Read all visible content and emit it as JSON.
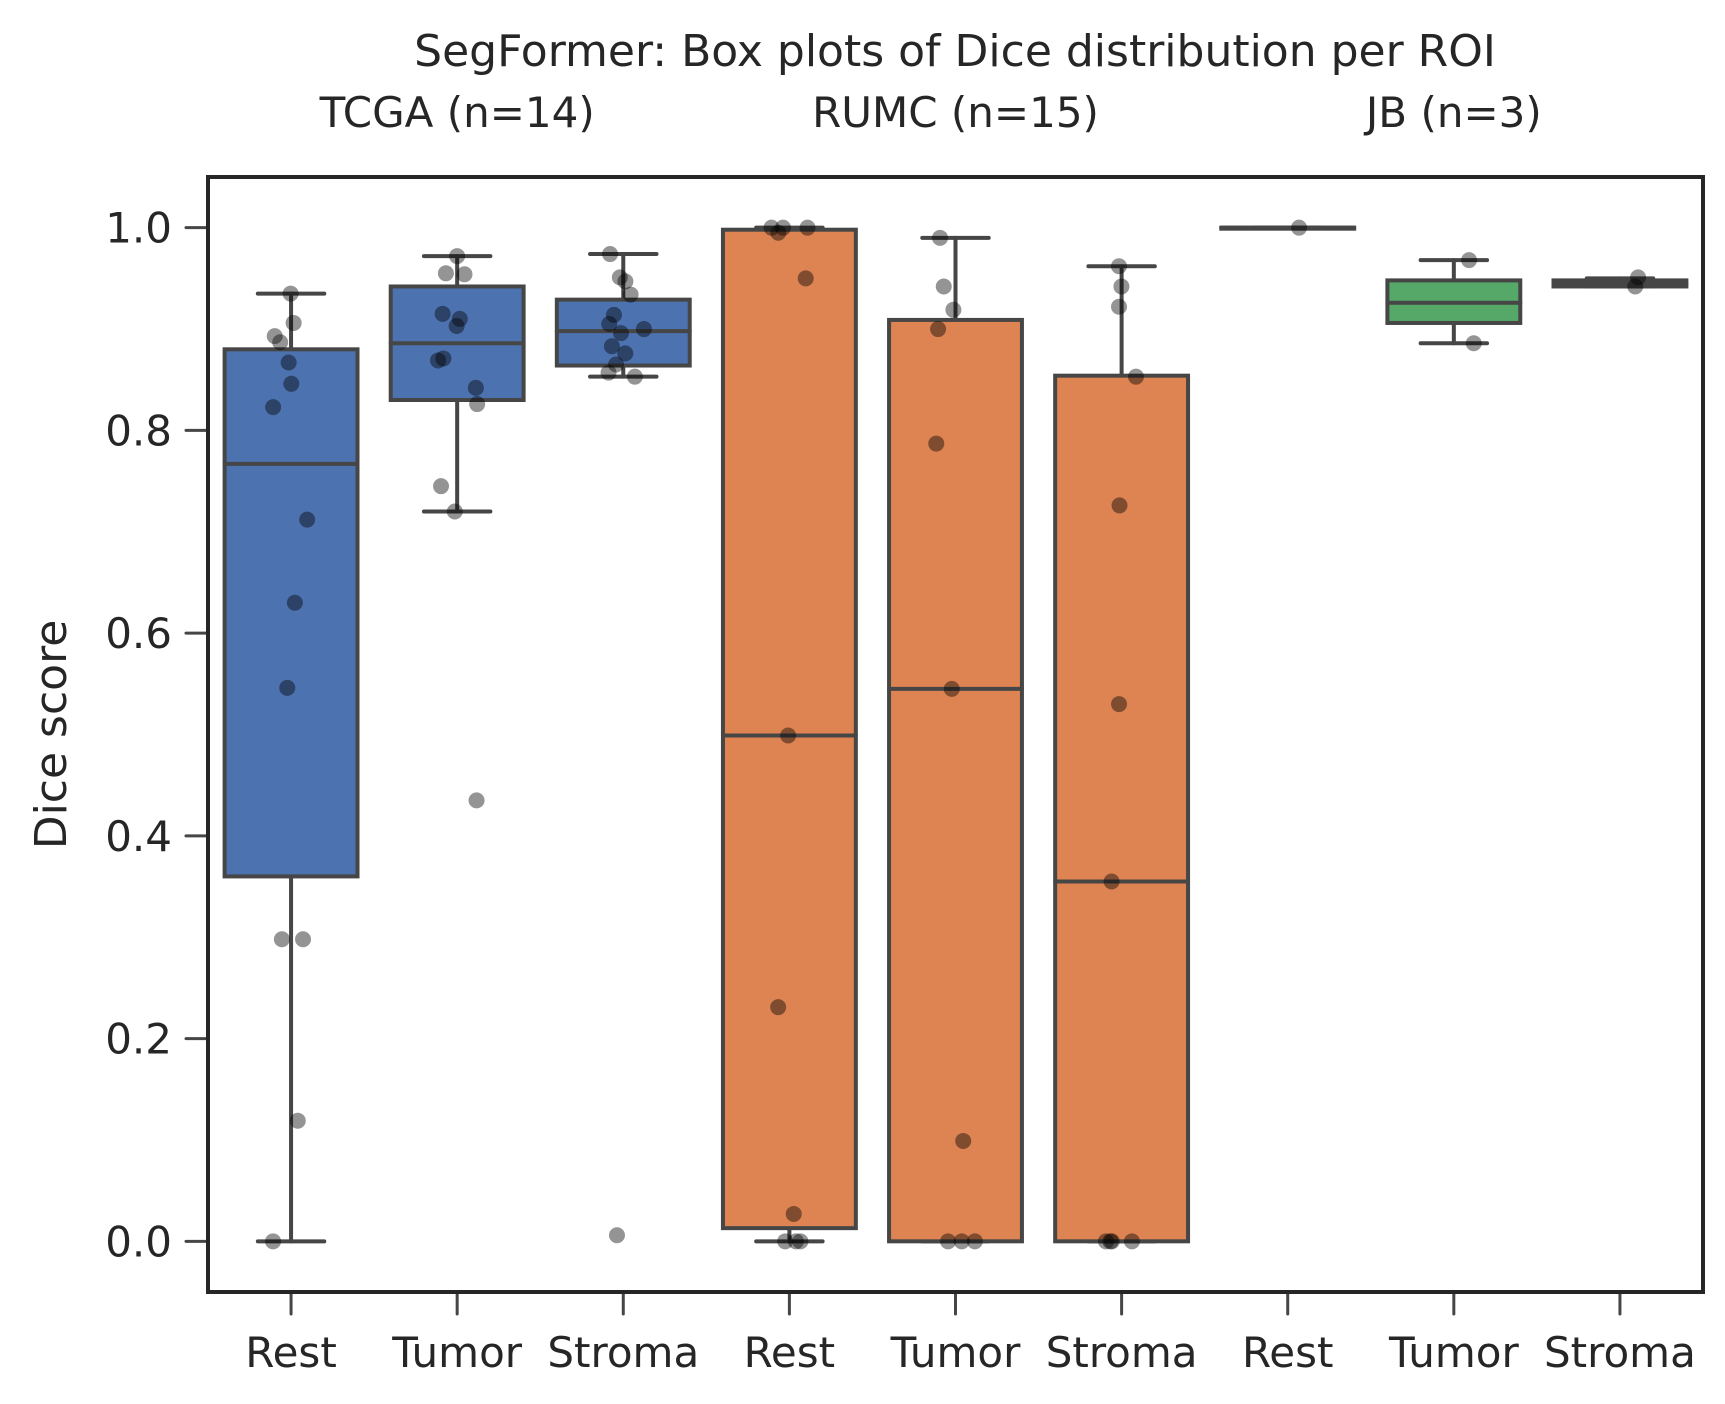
{
  "chart_data": {
    "type": "box",
    "title": "SegFormer: Box plots of Dice distribution per ROI",
    "xlabel": "",
    "ylabel": "Dice score",
    "ylim": [
      -0.05,
      1.05
    ],
    "yticks": [
      "0.0",
      "0.2",
      "0.4",
      "0.6",
      "0.8",
      "1.0"
    ],
    "grid": false,
    "groups": [
      {
        "label": "TCGA (n=14)",
        "color": "#4c72b0"
      },
      {
        "label": "RUMC (n=15)",
        "color": "#dd8452"
      },
      {
        "label": "JB (n=3)",
        "color": "#55a868"
      }
    ],
    "boxes": [
      {
        "group": 0,
        "category": "Rest",
        "whisker_low": 0.0,
        "q1": 0.36,
        "median": 0.767,
        "q3": 0.88,
        "whisker_high": 0.935,
        "points": [
          0.935,
          0.906,
          0.893,
          0.887,
          0.867,
          0.846,
          0.823,
          0.712,
          0.63,
          0.546,
          0.298,
          0.298,
          0.119,
          0.0
        ]
      },
      {
        "group": 0,
        "category": "Tumor",
        "whisker_low": 0.72,
        "q1": 0.83,
        "median": 0.886,
        "q3": 0.942,
        "whisker_high": 0.972,
        "points": [
          0.972,
          0.955,
          0.954,
          0.915,
          0.91,
          0.903,
          0.871,
          0.869,
          0.842,
          0.826,
          0.745,
          0.72,
          0.435
        ]
      },
      {
        "group": 0,
        "category": "Stroma",
        "whisker_low": 0.853,
        "q1": 0.864,
        "median": 0.898,
        "q3": 0.929,
        "whisker_high": 0.974,
        "points": [
          0.974,
          0.951,
          0.947,
          0.934,
          0.914,
          0.905,
          0.9,
          0.896,
          0.883,
          0.876,
          0.865,
          0.857,
          0.853,
          0.006
        ]
      },
      {
        "group": 1,
        "category": "Rest",
        "whisker_low": 0.0,
        "q1": 0.013,
        "median": 0.499,
        "q3": 0.998,
        "whisker_high": 1.0,
        "points": [
          1.0,
          1.0,
          1.0,
          0.995,
          0.95,
          0.499,
          0.231,
          0.027,
          0.0,
          0.0,
          0.0
        ]
      },
      {
        "group": 1,
        "category": "Tumor",
        "whisker_low": 0.0,
        "q1": 0.0,
        "median": 0.545,
        "q3": 0.909,
        "whisker_high": 0.99,
        "points": [
          0.99,
          0.942,
          0.919,
          0.9,
          0.787,
          0.545,
          0.099,
          0.0,
          0.0,
          0.0
        ]
      },
      {
        "group": 1,
        "category": "Stroma",
        "whisker_low": 0.0,
        "q1": 0.0,
        "median": 0.355,
        "q3": 0.854,
        "whisker_high": 0.962,
        "points": [
          0.962,
          0.942,
          0.922,
          0.853,
          0.726,
          0.53,
          0.355,
          0.0,
          0.0,
          0.0,
          0.0
        ]
      },
      {
        "group": 2,
        "category": "Rest",
        "whisker_low": 1.0,
        "q1": 1.0,
        "median": 1.0,
        "q3": 1.0,
        "whisker_high": 1.0,
        "points": [
          1.0
        ]
      },
      {
        "group": 2,
        "category": "Tumor",
        "whisker_low": 0.886,
        "q1": 0.906,
        "median": 0.926,
        "q3": 0.948,
        "whisker_high": 0.968,
        "points": [
          0.968,
          0.886
        ]
      },
      {
        "group": 2,
        "category": "Stroma",
        "whisker_low": 0.942,
        "q1": 0.942,
        "median": 0.945,
        "q3": 0.948,
        "whisker_high": 0.95,
        "points": [
          0.951,
          0.942
        ]
      }
    ]
  }
}
